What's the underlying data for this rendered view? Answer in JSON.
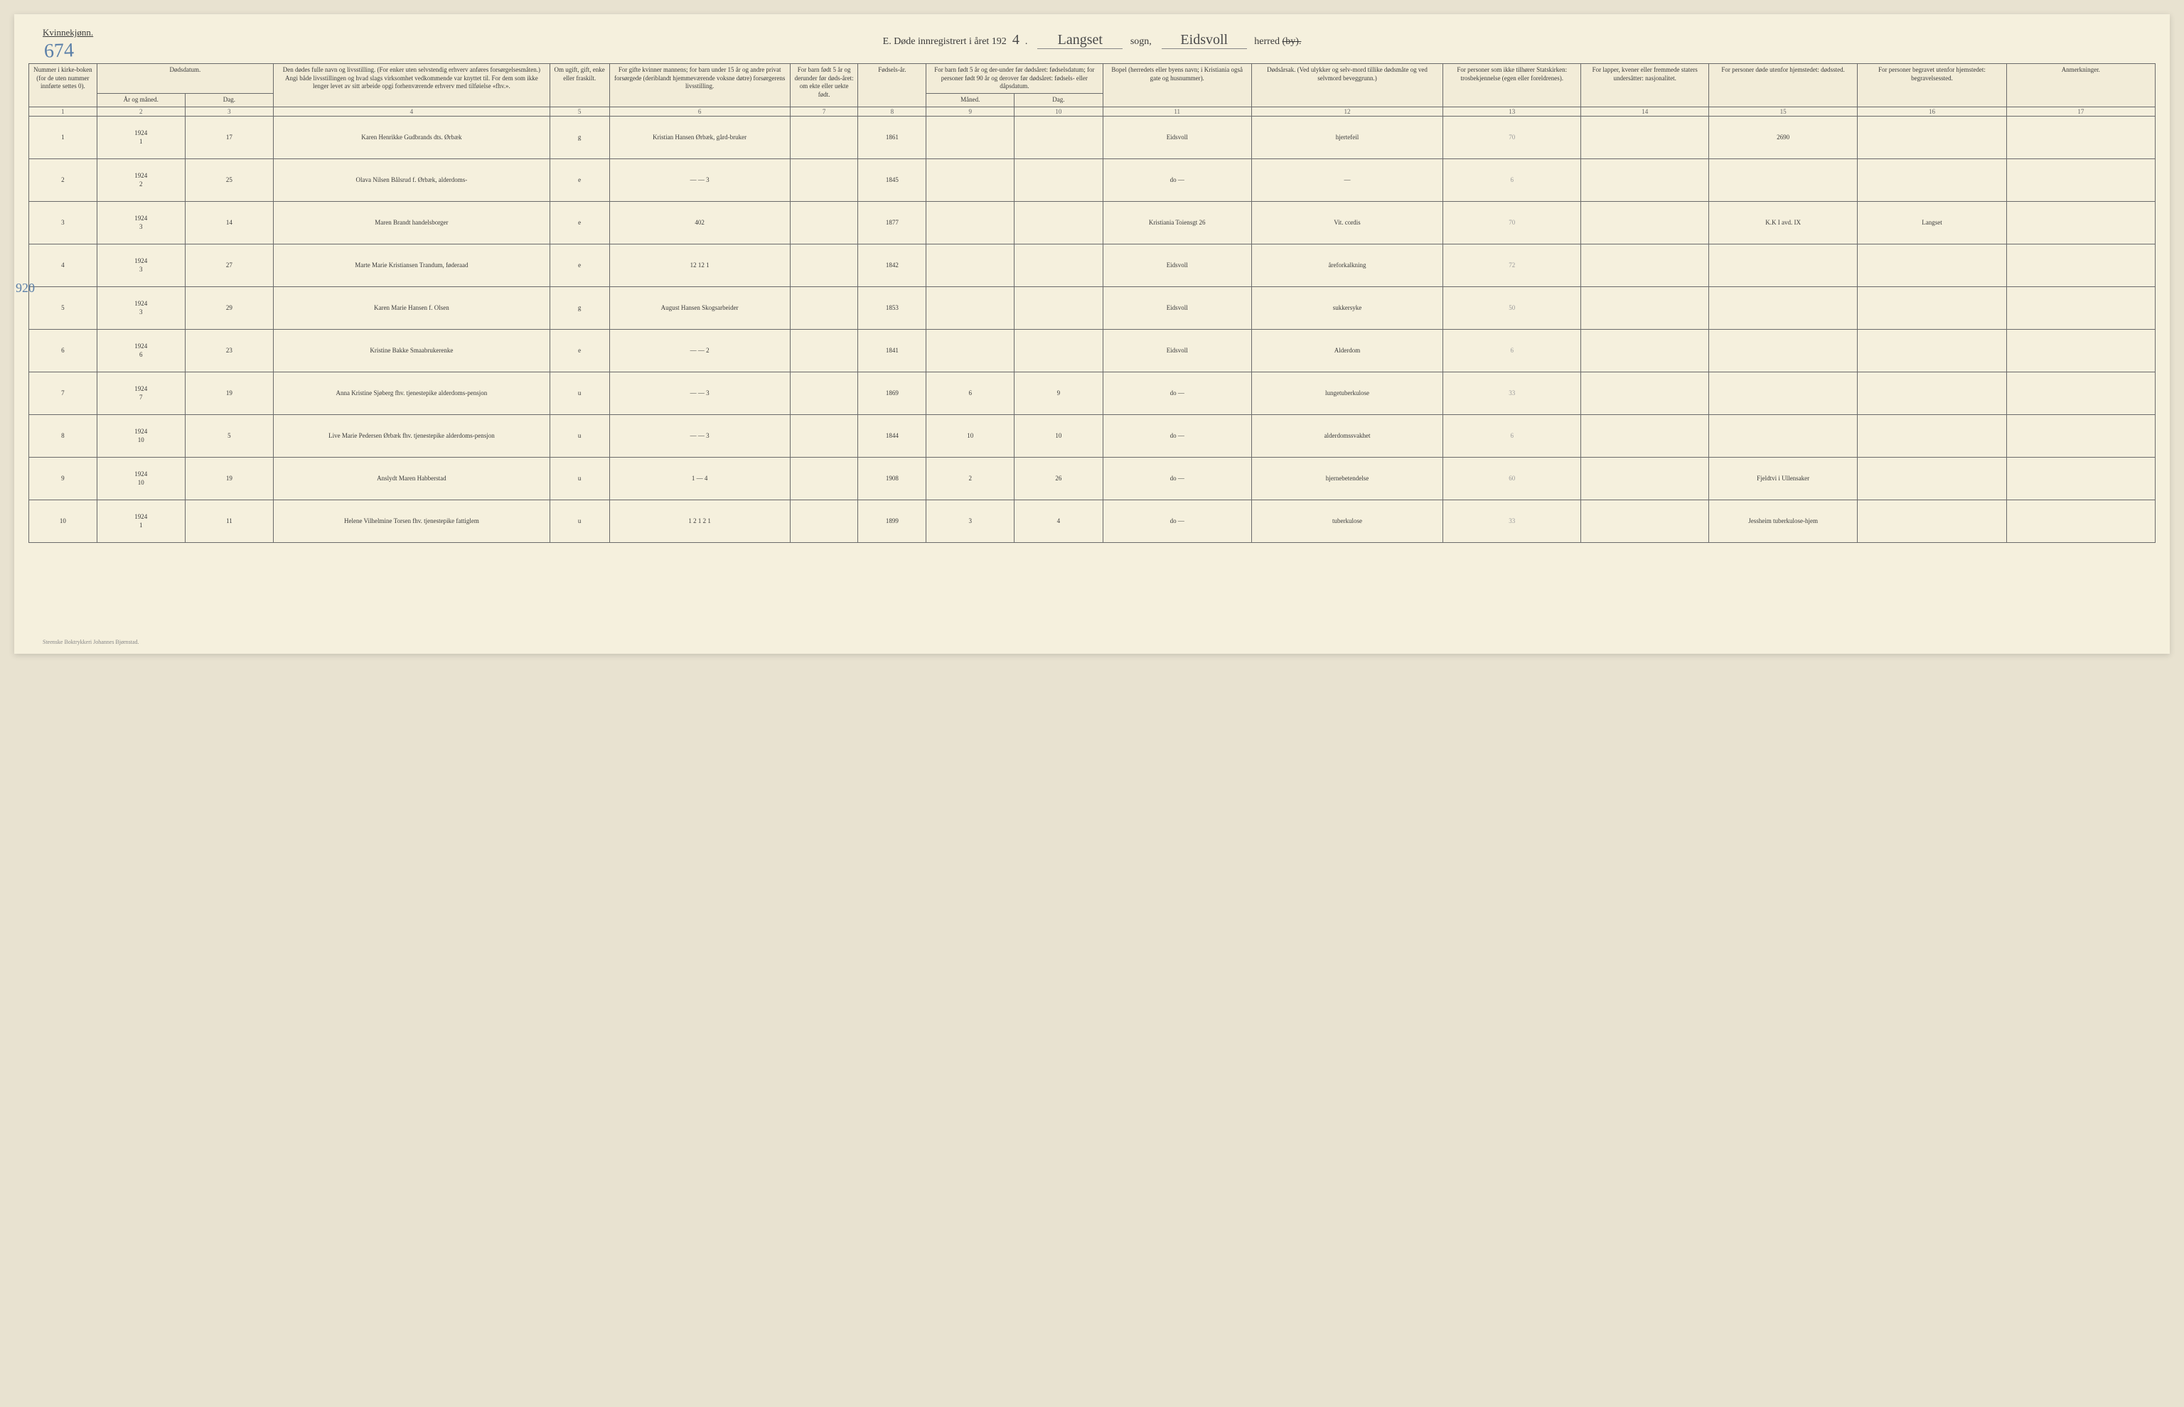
{
  "page": {
    "corner_label": "Kvinnekjønn.",
    "page_number": "674",
    "margin_annotation": "920",
    "footer": "Steenske Boktrykkeri Johannes Bjørnstad."
  },
  "header": {
    "prefix": "E.  Døde innregistrert i året 192",
    "year_suffix": "4",
    "sogn_value": "Langset",
    "sogn_label": "sogn,",
    "herred_value": "Eidsvoll",
    "herred_label": "herred",
    "by_strike": "(by)."
  },
  "columns": {
    "c1": "Nummer i kirke-boken (for de uten nummer innførte settes 0).",
    "c2_3_top": "Dødsdatum.",
    "c2": "År og måned.",
    "c3": "Dag.",
    "c4": "Den dødes fulle navn og livsstilling. (For enker uten selvstendig erhverv anføres forsørgelsesmåten.) Angi både livsstillingen og hvad slags virksomhet vedkommende var knyttet til. For dem som ikke lenger levet av sitt arbeide opgi forhenværende erhverv med tilføielse «fhv.».",
    "c5": "Om ugift, gift, enke eller fraskilt.",
    "c6": "For gifte kvinner mannens; for barn under 15 år og andre privat forsørgede (deriblandt hjemmeværende voksne døtre) forsørgerens livsstilling.",
    "c7": "For barn født 5 år og derunder før døds-året: om ekte eller uekte født.",
    "c8": "Fødsels-år.",
    "c9_10_top": "For barn født 5 år og der-under før dødsåret: fødselsdatum; for personer født 90 år og derover før dødsåret: fødsels- eller dåpsdatum.",
    "c9": "Måned.",
    "c10": "Dag.",
    "c11": "Bopel (herredets eller byens navn; i Kristiania også gate og husnummer).",
    "c12": "Dødsårsak. (Ved ulykker og selv-mord tillike dødsmåte og ved selvmord beveggrunn.)",
    "c13": "For personer som ikke tilhører Statskirken: trosbekjennelse (egen eller foreldrenes).",
    "c14": "For lapper, kvener eller fremmede staters undersåtter: nasjonalitet.",
    "c15": "For personer døde utenfor hjemstedet: dødssted.",
    "c16": "For personer begravet utenfor hjemstedet: begravelsessted.",
    "c17": "Anmerkninger."
  },
  "colnums": [
    "1",
    "2",
    "3",
    "4",
    "5",
    "6",
    "7",
    "8",
    "9",
    "10",
    "11",
    "12",
    "13",
    "14",
    "15",
    "16",
    "17"
  ],
  "rows": [
    {
      "n": "1",
      "year": "1924",
      "month": "1",
      "day": "17",
      "name": "Karen Henrikke Gudbrands dts. Ørbæk",
      "marital": "g",
      "spouse": "Kristian Hansen Ørbæk, gård-bruker",
      "birthyear": "1861",
      "residence": "Eidsvoll",
      "cause": "hjertefeil",
      "c13": "70",
      "c15": "2690"
    },
    {
      "n": "2",
      "year": "1924",
      "month": "2",
      "day": "25",
      "name": "Olava Nilsen Bålsrud f. Ørbæk, alderdoms-",
      "marital": "e",
      "spouse": "— — 3",
      "birthyear": "1845",
      "residence": "do —",
      "cause": "—",
      "c13": "6"
    },
    {
      "n": "3",
      "year": "1924",
      "month": "3",
      "day": "14",
      "name": "Maren Brandt handelsborger",
      "marital": "e",
      "spouse": "402",
      "birthyear": "1877",
      "residence": "Kristiania Toiensgt 26",
      "cause": "Vit. cordis",
      "c13": "70",
      "c15": "K.K I avd. IX",
      "c16": "Langset"
    },
    {
      "n": "4",
      "year": "1924",
      "month": "3",
      "day": "27",
      "name": "Marte Marie Kristiansen Trandum, føderaad",
      "marital": "e",
      "spouse": "12 12 1",
      "birthyear": "1842",
      "residence": "Eidsvoll",
      "cause": "åreforkalkning",
      "c13": "72"
    },
    {
      "n": "5",
      "year": "1924",
      "month": "3",
      "day": "29",
      "name": "Karen Marie Hansen f. Olsen",
      "marital": "g",
      "spouse": "August Hansen Skogsarbeider",
      "birthyear": "1853",
      "residence": "Eidsvoll",
      "cause": "sukkersyke",
      "c13": "50"
    },
    {
      "n": "6",
      "year": "1924",
      "month": "6",
      "day": "23",
      "name": "Kristine Bakke Smaabrukerenke",
      "marital": "e",
      "spouse": "— — 2",
      "birthyear": "1841",
      "residence": "Eidsvoll",
      "cause": "Alderdom",
      "c13": "6"
    },
    {
      "n": "7",
      "year": "1924",
      "month": "7",
      "day": "19",
      "name": "Anna Kristine Sjøberg fhv. tjenestepike alderdoms-pensjon",
      "marital": "u",
      "spouse": "— — 3",
      "birthyear": "1869",
      "cmonth": "6",
      "cday": "9",
      "residence": "do —",
      "cause": "lungetuberkulose",
      "c13": "33"
    },
    {
      "n": "8",
      "year": "1924",
      "month": "10",
      "day": "5",
      "name": "Live Marie Pedersen Ørbæk fhv. tjenestepike alderdoms-pensjon",
      "marital": "u",
      "spouse": "— — 3",
      "birthyear": "1844",
      "cmonth": "10",
      "cday": "10",
      "residence": "do —",
      "cause": "alderdomssvakhet",
      "c13": "6"
    },
    {
      "n": "9",
      "year": "1924",
      "month": "10",
      "day": "19",
      "name": "Anslydt Maren Habberstad",
      "marital": "u",
      "spouse": "1 — 4",
      "birthyear": "1908",
      "cmonth": "2",
      "cday": "26",
      "residence": "do —",
      "cause": "hjernebetendelse",
      "c13": "60",
      "c15": "Fjeldtvi i Ullensaker"
    },
    {
      "n": "10",
      "year": "1924",
      "month": "1",
      "day": "11",
      "name": "Helene Vilhelmine Torsen fhv. tjenestepike fattiglem",
      "marital": "u",
      "spouse": "1 2 1 2 1",
      "birthyear": "1899",
      "cmonth": "3",
      "cday": "4",
      "residence": "do —",
      "cause": "tuberkulose",
      "c13": "33",
      "c15": "Jessheim tuberkulose-hjem"
    }
  ]
}
